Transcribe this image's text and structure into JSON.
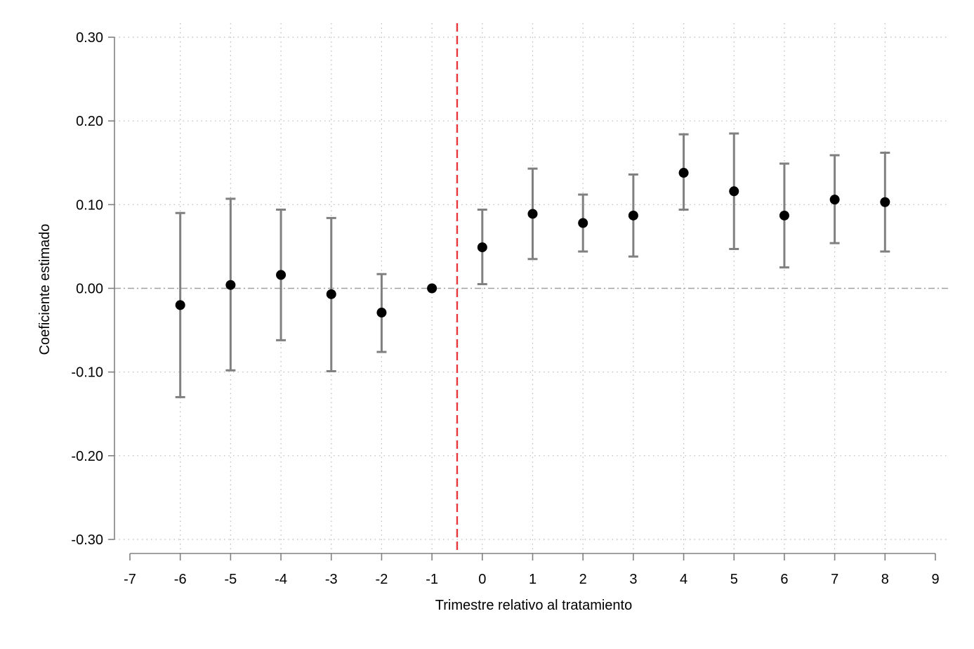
{
  "chart_data": {
    "type": "scatter",
    "title": "",
    "xlabel": "Trimestre relativo al tratamiento",
    "ylabel": "Coeficiente estimado",
    "xlim": [
      -7,
      9
    ],
    "ylim": [
      -0.3,
      0.3
    ],
    "x_ticks": [
      "-7",
      "-6",
      "-5",
      "-4",
      "-3",
      "-2",
      "-1",
      "0",
      "1",
      "2",
      "3",
      "4",
      "5",
      "6",
      "7",
      "8",
      "9"
    ],
    "y_ticks": [
      "0.30",
      "0.20",
      "0.10",
      "0.00",
      "-0.10",
      "-0.20",
      "-0.30"
    ],
    "grid": true,
    "reference_lines": {
      "horizontal_y": 0.0,
      "vertical_x": -0.5
    },
    "series": [
      {
        "x": [
          -6,
          -5,
          -4,
          -3,
          -2,
          -1,
          0,
          1,
          2,
          3,
          4,
          5,
          6,
          7,
          8
        ],
        "y": [
          -0.02,
          0.004,
          0.016,
          -0.007,
          -0.029,
          0.0,
          0.049,
          0.089,
          0.078,
          0.087,
          0.138,
          0.116,
          0.087,
          0.106,
          0.103
        ],
        "lower": [
          -0.13,
          -0.098,
          -0.062,
          -0.099,
          -0.076,
          0.0,
          0.005,
          0.035,
          0.044,
          0.038,
          0.094,
          0.047,
          0.025,
          0.054,
          0.044
        ],
        "upper": [
          0.09,
          0.107,
          0.094,
          0.084,
          0.017,
          0.0,
          0.094,
          0.143,
          0.112,
          0.136,
          0.184,
          0.185,
          0.149,
          0.159,
          0.162
        ]
      }
    ],
    "colors": {
      "point": "#000000",
      "error_bar": "#808080",
      "vertical_line": "#e8363d",
      "zero_line": "#a0a0a0",
      "grid": "#b8b8b8",
      "axis": "#808080"
    }
  }
}
